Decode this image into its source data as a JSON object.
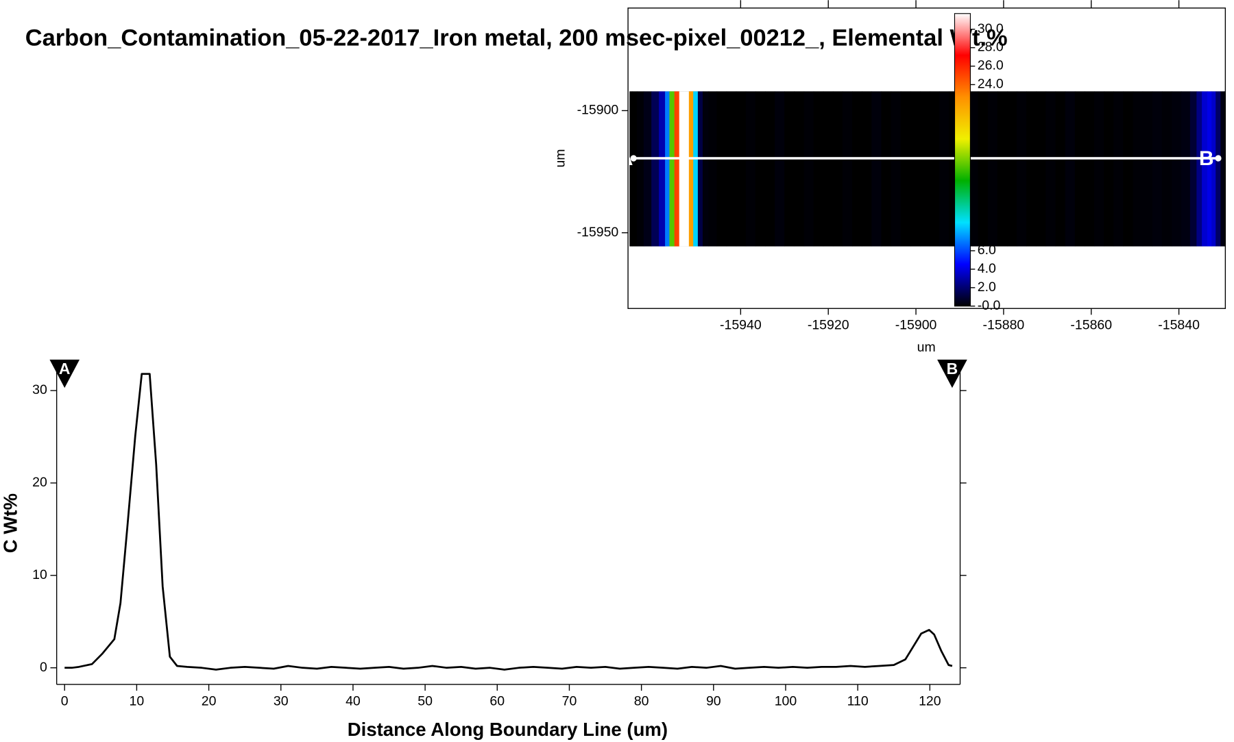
{
  "chart_data": [
    {
      "type": "heatmap",
      "title": "Carbon_Contamination_05-22-2017_Iron metal, 200 msec-pixel_00212_, Elemental Wt.%",
      "xlabel": "um",
      "ylabel": "um",
      "xlim": [
        -15965.7,
        -15829.4
      ],
      "ylim": [
        -15981,
        -15858
      ],
      "xticks": [
        -15940,
        -15920,
        -15900,
        -15880,
        -15860,
        -15840
      ],
      "yticks": [
        -15900,
        -15950
      ],
      "line_labels": [
        "A",
        "B"
      ],
      "colorbar": {
        "clim": [
          0,
          31.7
        ],
        "ticks": [
          {
            "value": 0,
            "label": "-0.0"
          },
          {
            "value": 2,
            "label": "2.0"
          },
          {
            "value": 4,
            "label": "4.0"
          },
          {
            "value": 6,
            "label": "6.0"
          },
          {
            "value": 24,
            "label": "24.0"
          },
          {
            "value": 26,
            "label": "26.0"
          },
          {
            "value": 28,
            "label": "28.0"
          },
          {
            "value": 30,
            "label": "30.0"
          }
        ],
        "colormap": [
          "#000000",
          "#0000ff",
          "#00e0ff",
          "#00b000",
          "#f0f000",
          "#ff9000",
          "#ff0000",
          "#ffffff"
        ]
      }
    },
    {
      "type": "line",
      "xlabel": "Distance Along Boundary Line (um)",
      "ylabel": "C Wt%",
      "xlim": [
        -1.1,
        124.2
      ],
      "ylim": [
        -1.8,
        32.5
      ],
      "xticks": [
        0,
        10,
        20,
        30,
        40,
        50,
        60,
        70,
        80,
        90,
        100,
        110,
        120
      ],
      "yticks": [
        0,
        10,
        20,
        30
      ],
      "markers": [
        "A",
        "B"
      ],
      "color": "#000000",
      "x": [
        0,
        1,
        2,
        3.8,
        5.2,
        6.9,
        7.75,
        8.7,
        9.8,
        10.7,
        11.8,
        12.7,
        13.6,
        14.6,
        15.6,
        17,
        19,
        21,
        23,
        25,
        27,
        29,
        31,
        33,
        35,
        37,
        39,
        41,
        43,
        45,
        47,
        49,
        51,
        53,
        55,
        57,
        59,
        61,
        63,
        65,
        67,
        69,
        71,
        73,
        75,
        77,
        79,
        81,
        83,
        85,
        87,
        89,
        91,
        93,
        95,
        97,
        99,
        101,
        103,
        105,
        107,
        109,
        111,
        113,
        115,
        116.6,
        117.7,
        118.8,
        119.9,
        120.6,
        121.6,
        122.6,
        123.1
      ],
      "values": [
        0,
        0,
        0.1,
        0.4,
        1.5,
        3.1,
        7.0,
        15.2,
        25.1,
        31.8,
        31.8,
        22,
        8.8,
        1.2,
        0.2,
        0.1,
        0,
        -0.2,
        0,
        0.1,
        0,
        -0.1,
        0.2,
        0,
        -0.1,
        0.1,
        0,
        -0.1,
        0,
        0.1,
        -0.1,
        0,
        0.2,
        0,
        0.1,
        -0.1,
        0,
        -0.2,
        0,
        0.1,
        0,
        -0.1,
        0.1,
        0,
        0.1,
        -0.1,
        0,
        0.1,
        0,
        -0.1,
        0.1,
        0,
        0.2,
        -0.1,
        0,
        0.1,
        0,
        0.1,
        0,
        0.1,
        0.1,
        0.2,
        0.1,
        0.2,
        0.3,
        0.9,
        2.3,
        3.7,
        4.1,
        3.6,
        1.8,
        0.3,
        0.2
      ]
    }
  ]
}
